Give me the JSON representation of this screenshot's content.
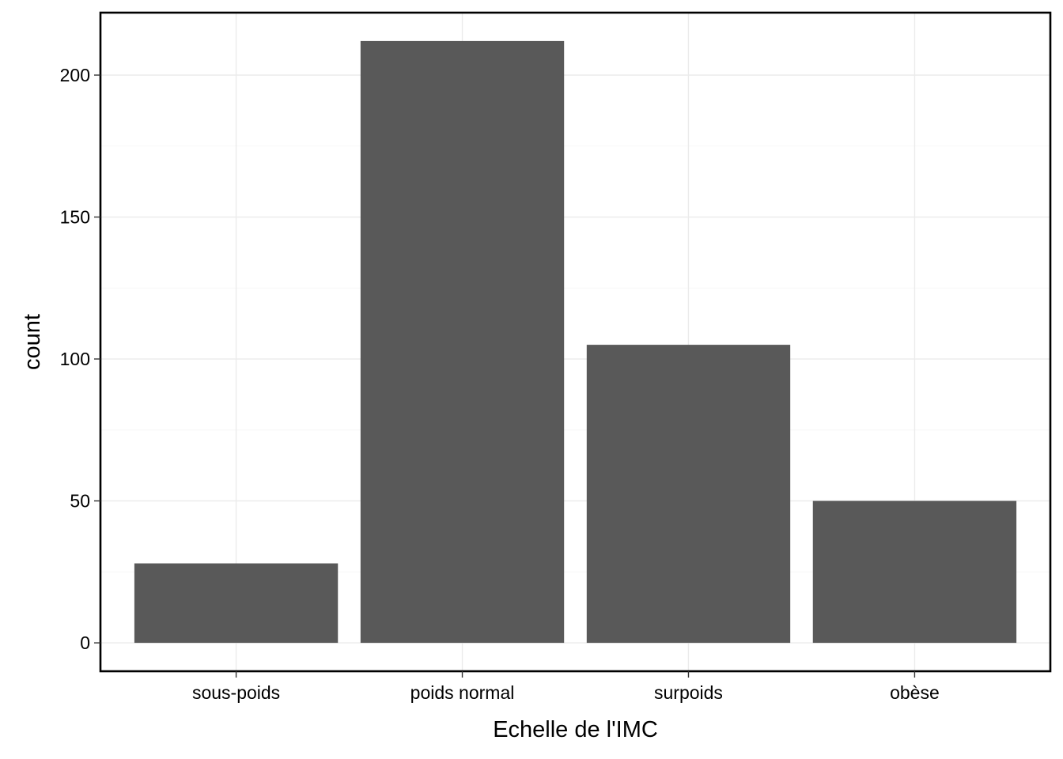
{
  "chart_data": {
    "type": "bar",
    "categories": [
      "sous-poids",
      "poids normal",
      "surpoids",
      "obèse"
    ],
    "values": [
      28,
      212,
      105,
      50
    ],
    "xlabel": "Echelle de l'IMC",
    "ylabel": "count",
    "ylim": [
      -10,
      222
    ],
    "yticks": [
      0,
      50,
      100,
      150,
      200
    ],
    "ytick_labels": [
      "0",
      "50",
      "100",
      "150",
      "200"
    ],
    "grid": true,
    "bar_color": "#595959",
    "theme": "bw"
  }
}
